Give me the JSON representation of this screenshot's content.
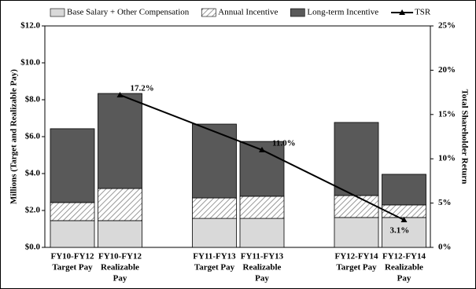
{
  "chart_data": {
    "type": "stacked-bar-line",
    "categories": [
      [
        "FY10-FY12",
        "Target Pay"
      ],
      [
        "FY10-FY12",
        "Realizable",
        "Pay"
      ],
      [
        "FY11-FY13",
        "Target Pay"
      ],
      [
        "FY11-FY13",
        "Realizable",
        "Pay"
      ],
      [
        "FY12-FY14",
        "Target Pay"
      ],
      [
        "FY12-FY14",
        "Realizable",
        "Pay"
      ]
    ],
    "series": [
      {
        "name": "Base Salary + Other Compensation",
        "color": "#d9d9d9",
        "values": [
          1.45,
          1.45,
          1.57,
          1.57,
          1.62,
          1.62
        ]
      },
      {
        "name": "Annual Incentive",
        "color": "#7f7f7f",
        "pattern": "hatch",
        "values": [
          0.98,
          1.74,
          1.11,
          1.2,
          1.19,
          0.68
        ]
      },
      {
        "name": "Long-term Incentive",
        "color": "#595959",
        "values": [
          4.0,
          5.15,
          4.0,
          2.97,
          3.96,
          1.66
        ]
      },
      {
        "name": "TSR",
        "type": "line",
        "axis": "y2",
        "color": "#000000",
        "values": [
          null,
          17.2,
          null,
          11.0,
          null,
          3.1
        ],
        "value_labels": [
          null,
          "17.2%",
          null,
          "11.0%",
          null,
          "3.1%"
        ]
      }
    ],
    "ylabel": "Millions (Target and Realizable Pay)",
    "y2label": "Total Shareholder Return",
    "ylim": [
      0,
      12
    ],
    "yticks": [
      {
        "value": 0,
        "label": "$0.0"
      },
      {
        "value": 2,
        "label": "$2.0"
      },
      {
        "value": 4,
        "label": "$4.0"
      },
      {
        "value": 6,
        "label": "$6.0"
      },
      {
        "value": 8,
        "label": "$8.0"
      },
      {
        "value": 10,
        "label": "$10.0"
      },
      {
        "value": 12,
        "label": "$12.0"
      }
    ],
    "y2lim": [
      0,
      25
    ],
    "y2ticks": [
      {
        "value": 0,
        "label": "0%"
      },
      {
        "value": 5,
        "label": "5%"
      },
      {
        "value": 10,
        "label": "10%"
      },
      {
        "value": 15,
        "label": "15%"
      },
      {
        "value": 20,
        "label": "20%"
      },
      {
        "value": 25,
        "label": "25%"
      }
    ],
    "grid": false,
    "legend": "top"
  }
}
